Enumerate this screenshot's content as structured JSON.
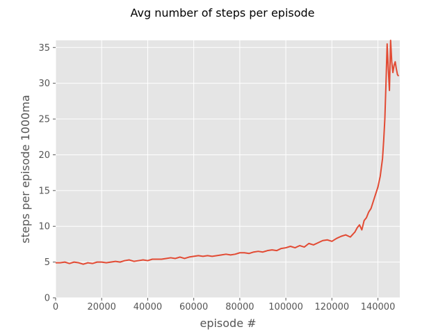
{
  "chart_data": {
    "type": "line",
    "title": "Avg number of steps per episode",
    "xlabel": "episode #",
    "ylabel": "steps per episode 1000ma",
    "xlim": [
      0,
      149500
    ],
    "ylim": [
      0,
      36
    ],
    "xticks": [
      0,
      20000,
      40000,
      60000,
      80000,
      100000,
      120000,
      140000
    ],
    "yticks": [
      0,
      5,
      10,
      15,
      20,
      25,
      30,
      35
    ],
    "grid": true,
    "background": "#E5E5E5",
    "grid_color": "#FFFFFF",
    "series": [
      {
        "color": "#E24A33",
        "x": [
          0,
          2000,
          4000,
          6000,
          8000,
          10000,
          12000,
          14000,
          16000,
          18000,
          20000,
          22000,
          24000,
          26000,
          28000,
          30000,
          32000,
          34000,
          36000,
          38000,
          40000,
          42000,
          44000,
          46000,
          48000,
          50000,
          52000,
          54000,
          56000,
          58000,
          60000,
          62000,
          64000,
          66000,
          68000,
          70000,
          72000,
          74000,
          76000,
          78000,
          80000,
          82000,
          84000,
          86000,
          88000,
          90000,
          92000,
          94000,
          96000,
          98000,
          100000,
          102000,
          104000,
          106000,
          108000,
          110000,
          112000,
          114000,
          116000,
          118000,
          120000,
          122000,
          124000,
          126000,
          128000,
          130000,
          131000,
          132000,
          133000,
          134000,
          135000,
          136000,
          137000,
          138000,
          139000,
          140000,
          141000,
          142000,
          142500,
          143000,
          143500,
          144000,
          144500,
          145000,
          145500,
          146000,
          146500,
          147000,
          147500,
          148000,
          148500,
          149000
        ],
        "y": [
          4.9,
          4.9,
          5.0,
          4.8,
          5.0,
          4.9,
          4.7,
          4.9,
          4.8,
          5.0,
          5.0,
          4.9,
          5.0,
          5.1,
          5.0,
          5.2,
          5.3,
          5.1,
          5.2,
          5.3,
          5.2,
          5.4,
          5.4,
          5.4,
          5.5,
          5.6,
          5.5,
          5.7,
          5.5,
          5.7,
          5.8,
          5.9,
          5.8,
          5.9,
          5.8,
          5.9,
          6.0,
          6.1,
          6.0,
          6.1,
          6.3,
          6.3,
          6.2,
          6.4,
          6.5,
          6.4,
          6.6,
          6.7,
          6.6,
          6.9,
          7.0,
          7.2,
          7.0,
          7.3,
          7.1,
          7.6,
          7.4,
          7.7,
          8.0,
          8.1,
          7.9,
          8.3,
          8.6,
          8.8,
          8.5,
          9.2,
          9.8,
          10.2,
          9.5,
          10.8,
          11.2,
          12.0,
          12.5,
          13.5,
          14.5,
          15.5,
          17.0,
          19.5,
          22.0,
          25.0,
          30.0,
          35.5,
          32.0,
          29.0,
          36.0,
          33.0,
          31.5,
          32.5,
          33.0,
          32.0,
          31.2,
          31.0
        ]
      }
    ]
  }
}
